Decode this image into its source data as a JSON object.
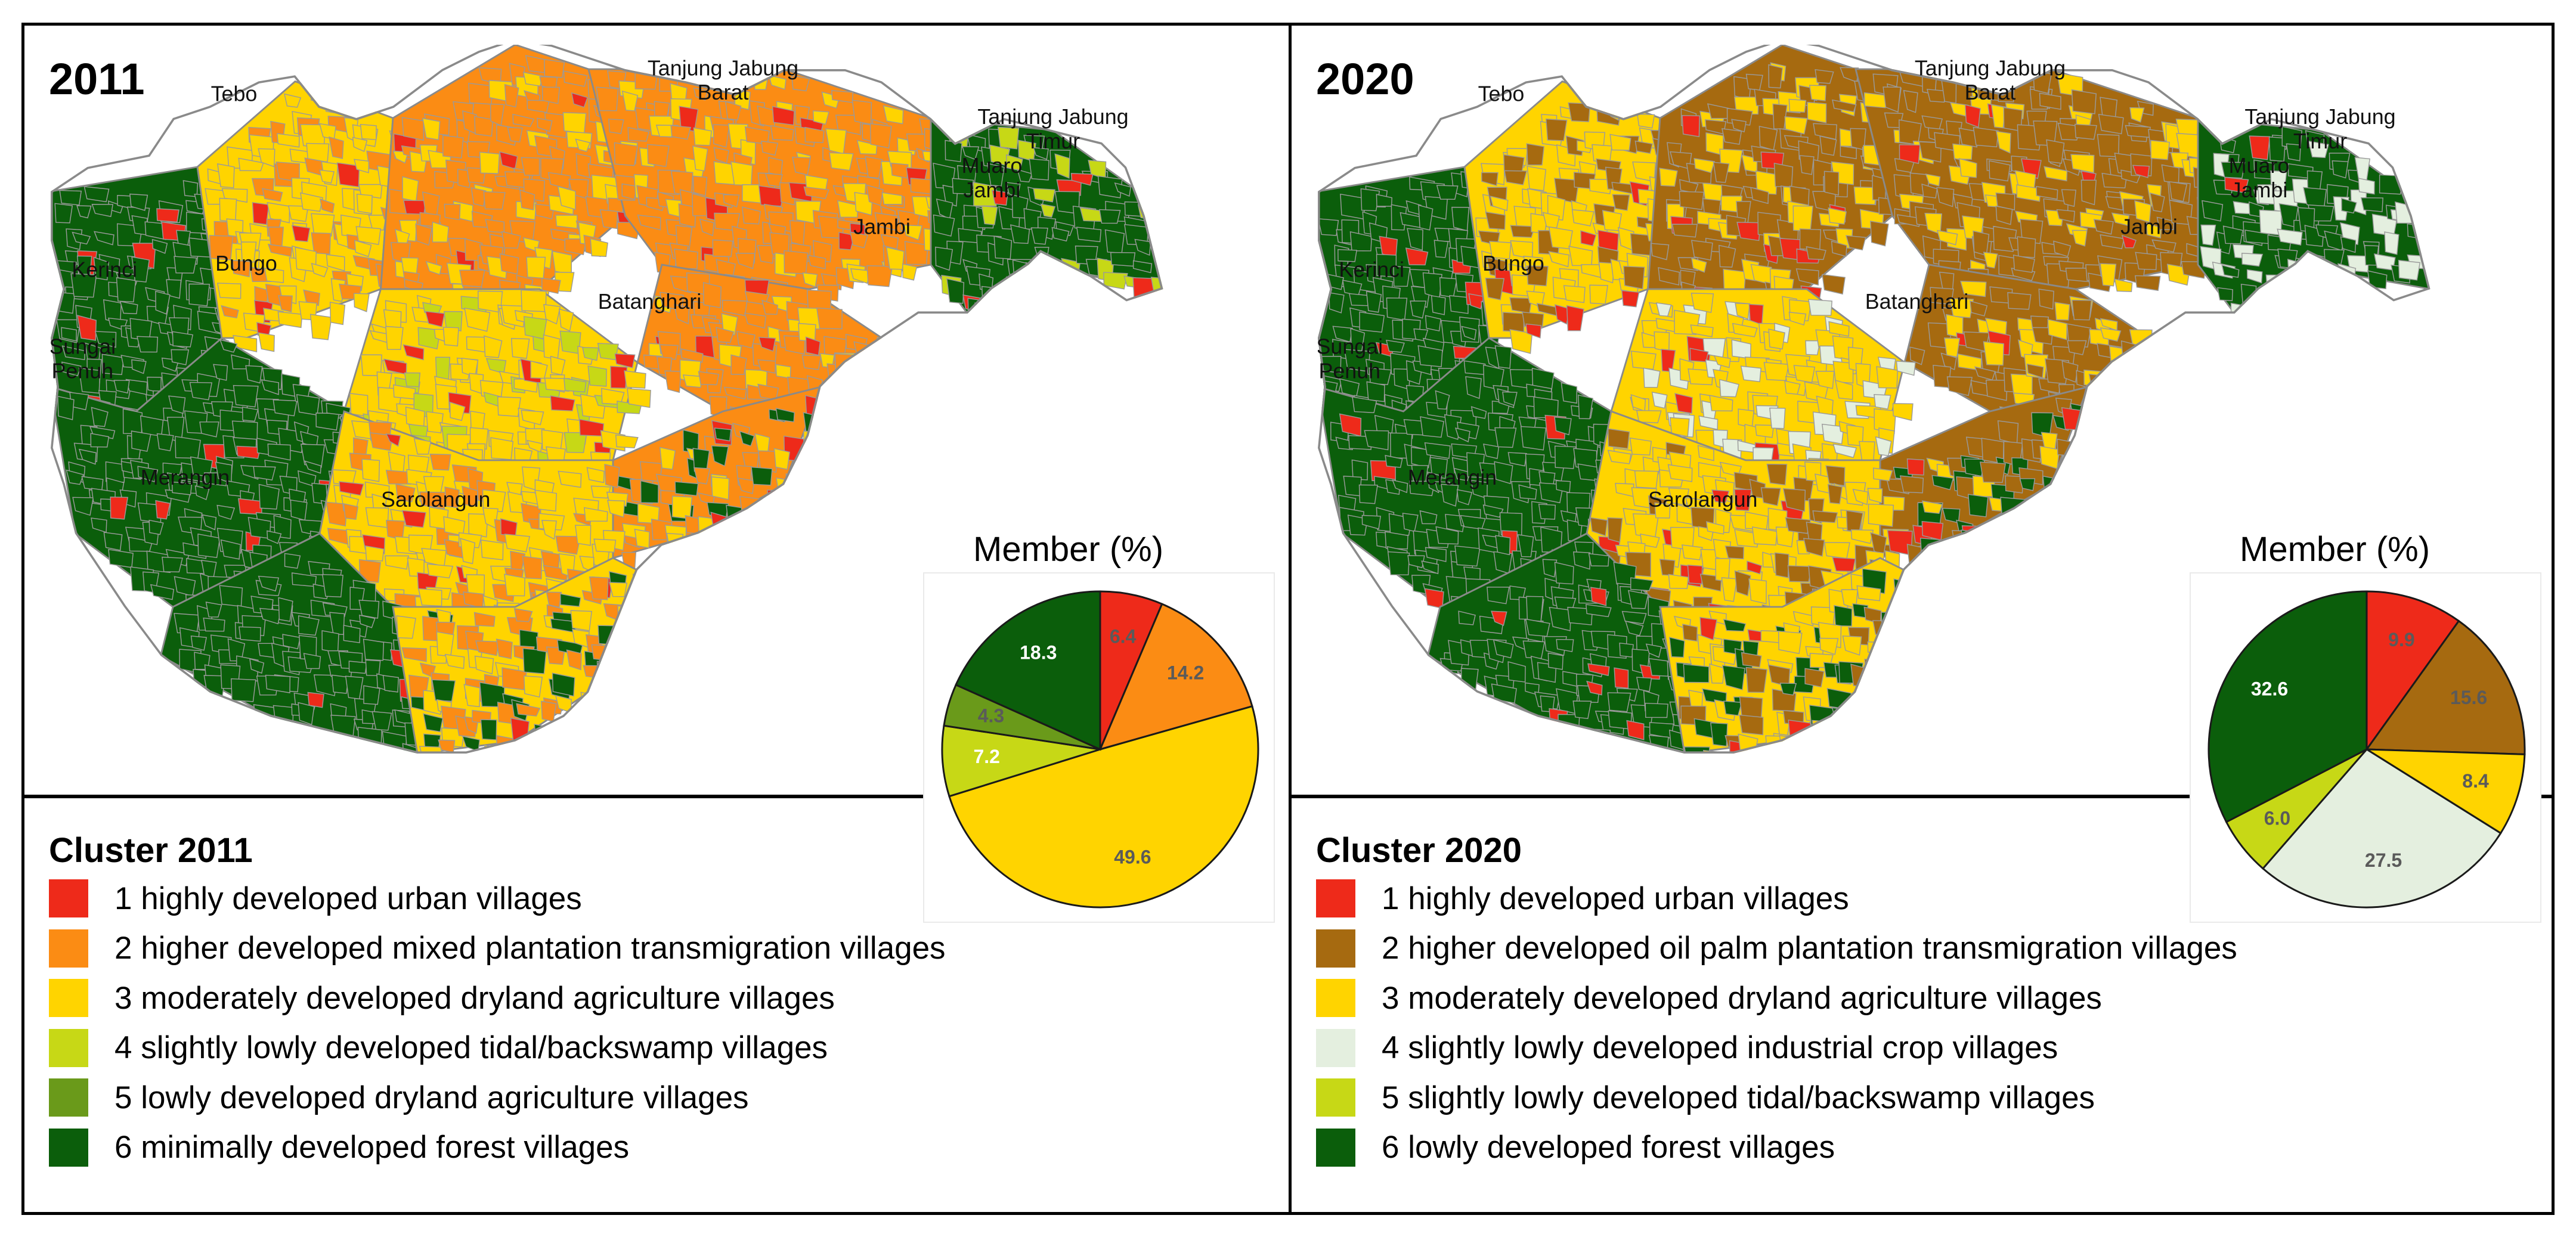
{
  "panels": [
    {
      "year": "2011",
      "places": [
        {
          "name": "tebo",
          "lines": [
            "Tebo"
          ]
        },
        {
          "name": "tanjung-jabung-barat",
          "lines": [
            "Tanjung Jabung",
            "Barat"
          ]
        },
        {
          "name": "tanjung-jabung-timur",
          "lines": [
            "Tanjung Jabung",
            "Timur"
          ]
        },
        {
          "name": "muaro-jambi",
          "lines": [
            "Muaro",
            "Jambi"
          ]
        },
        {
          "name": "jambi",
          "lines": [
            "Jambi"
          ]
        },
        {
          "name": "bungo",
          "lines": [
            "Bungo"
          ]
        },
        {
          "name": "kerinci",
          "lines": [
            "Kerinci"
          ]
        },
        {
          "name": "batanghari",
          "lines": [
            "Batanghari"
          ]
        },
        {
          "name": "sungai-penuh",
          "lines": [
            "Sungai",
            "Penuh"
          ]
        },
        {
          "name": "merangin",
          "lines": [
            "Merangin"
          ]
        },
        {
          "name": "sarolangun",
          "lines": [
            "Sarolangun"
          ]
        }
      ],
      "pie_title": "Member (%)",
      "legend_title": "Cluster 2011",
      "clusters": [
        {
          "label": "1 highly developed urban villages",
          "color": "#ee2a1a",
          "value": 6.4,
          "value_label": "6.4",
          "label_color": "#5a5a5a"
        },
        {
          "label": "2 higher developed mixed plantation transmigration villages",
          "color": "#fb8c14",
          "value": 14.2,
          "value_label": "14.2",
          "label_color": "#5a5a5a"
        },
        {
          "label": "3 moderately developed dryland agriculture villages",
          "color": "#ffd400",
          "value": 49.6,
          "value_label": "49.6",
          "label_color": "#5a5a5a"
        },
        {
          "label": "4 slightly lowly developed tidal/backswamp villages",
          "color": "#c7d816",
          "value": 7.2,
          "value_label": "7.2",
          "label_color": "#ffffff"
        },
        {
          "label": "5 lowly developed dryland agriculture villages",
          "color": "#6a9a1a",
          "value": 4.3,
          "value_label": "4.3",
          "label_color": "#5a5a5a"
        },
        {
          "label": "6 minimally developed forest villages",
          "color": "#0b5e0b",
          "value": 18.3,
          "value_label": "18.3",
          "label_color": "#ffffff"
        }
      ]
    },
    {
      "year": "2020",
      "places": [
        {
          "name": "tebo",
          "lines": [
            "Tebo"
          ]
        },
        {
          "name": "tanjung-jabung-barat",
          "lines": [
            "Tanjung Jabung",
            "Barat"
          ]
        },
        {
          "name": "tanjung-jabung-timur",
          "lines": [
            "Tanjung Jabung",
            "Timur"
          ]
        },
        {
          "name": "muaro-jambi",
          "lines": [
            "Muaro",
            "Jambi"
          ]
        },
        {
          "name": "jambi",
          "lines": [
            "Jambi"
          ]
        },
        {
          "name": "bungo",
          "lines": [
            "Bungo"
          ]
        },
        {
          "name": "kerinci",
          "lines": [
            "Kerinci"
          ]
        },
        {
          "name": "batanghari",
          "lines": [
            "Batanghari"
          ]
        },
        {
          "name": "sungai-penuh",
          "lines": [
            "Sungai",
            "Penuh"
          ]
        },
        {
          "name": "merangin",
          "lines": [
            "Merangin"
          ]
        },
        {
          "name": "sarolangun",
          "lines": [
            "Sarolangun"
          ]
        }
      ],
      "pie_title": "Member (%)",
      "legend_title": "Cluster 2020",
      "clusters": [
        {
          "label": "1 highly developed urban villages",
          "color": "#ee2a1a",
          "value": 9.9,
          "value_label": "9.9",
          "label_color": "#5a5a5a"
        },
        {
          "label": "2 higher developed oil palm plantation transmigration villages",
          "color": "#a66a10",
          "value": 15.6,
          "value_label": "15.6",
          "label_color": "#5a5a5a"
        },
        {
          "label": "3 moderately developed dryland agriculture villages",
          "color": "#ffd400",
          "value": 8.4,
          "value_label": "8.4",
          "label_color": "#5a5a5a"
        },
        {
          "label": "4 slightly lowly developed industrial crop villages",
          "color": "#e4efdf",
          "value": 27.5,
          "value_label": "27.5",
          "label_color": "#5a5a5a"
        },
        {
          "label": "5 slightly lowly developed tidal/backswamp villages",
          "color": "#c7d816",
          "value": 6.0,
          "value_label": "6.0",
          "label_color": "#5a5a5a"
        },
        {
          "label": "6 lowly developed forest villages",
          "color": "#0b5e0b",
          "value": 32.6,
          "value_label": "32.6",
          "label_color": "#ffffff"
        }
      ]
    }
  ]
}
